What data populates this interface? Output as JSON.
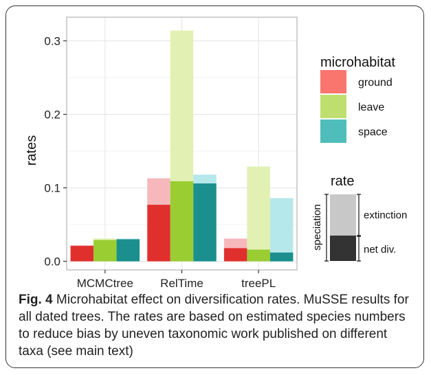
{
  "chart_data": {
    "type": "bar",
    "categories": [
      "MCMCtree",
      "RelTime",
      "treePL"
    ],
    "ylabel": "rates",
    "xlabel": "",
    "ylim": [
      0,
      0.33
    ],
    "yticks": [
      0.0,
      0.1,
      0.2,
      0.3
    ],
    "ytick_labels": [
      "0.0",
      "0.1",
      "0.2",
      "0.3"
    ],
    "grid": true,
    "series": [
      {
        "name": "ground",
        "color": "#F8766D",
        "dark_color": "#E0302E",
        "light_color": "#F7B8BC",
        "net_div": [
          0.021,
          0.077,
          0.018
        ],
        "speciation": [
          0.022,
          0.113,
          0.031
        ]
      },
      {
        "name": "leave",
        "color": "#BEDF6E",
        "dark_color": "#9ACD32",
        "light_color": "#E2F0B4",
        "net_div": [
          0.029,
          0.109,
          0.016
        ],
        "speciation": [
          0.031,
          0.314,
          0.129
        ]
      },
      {
        "name": "space",
        "color": "#4FBDBA",
        "dark_color": "#1A8F8E",
        "light_color": "#B5E8EA",
        "net_div": [
          0.03,
          0.106,
          0.012
        ],
        "speciation": [
          0.031,
          0.118,
          0.086
        ]
      }
    ],
    "legend": {
      "title": "microhabitat",
      "placement": "right"
    }
  },
  "rate_legend": {
    "title": "rate",
    "speciation_label": "speciation",
    "extinction_label": "extinction",
    "net_div_label": "net div.",
    "light_color": "#C8C8C8",
    "dark_color": "#333333"
  },
  "caption": {
    "label": "Fig. 4",
    "text": "Microhabitat effect on diversification rates. MuSSE results for all dated trees. The rates are based on estimated species numbers to reduce bias by uneven taxonomic work published on different taxa (see main text)"
  }
}
